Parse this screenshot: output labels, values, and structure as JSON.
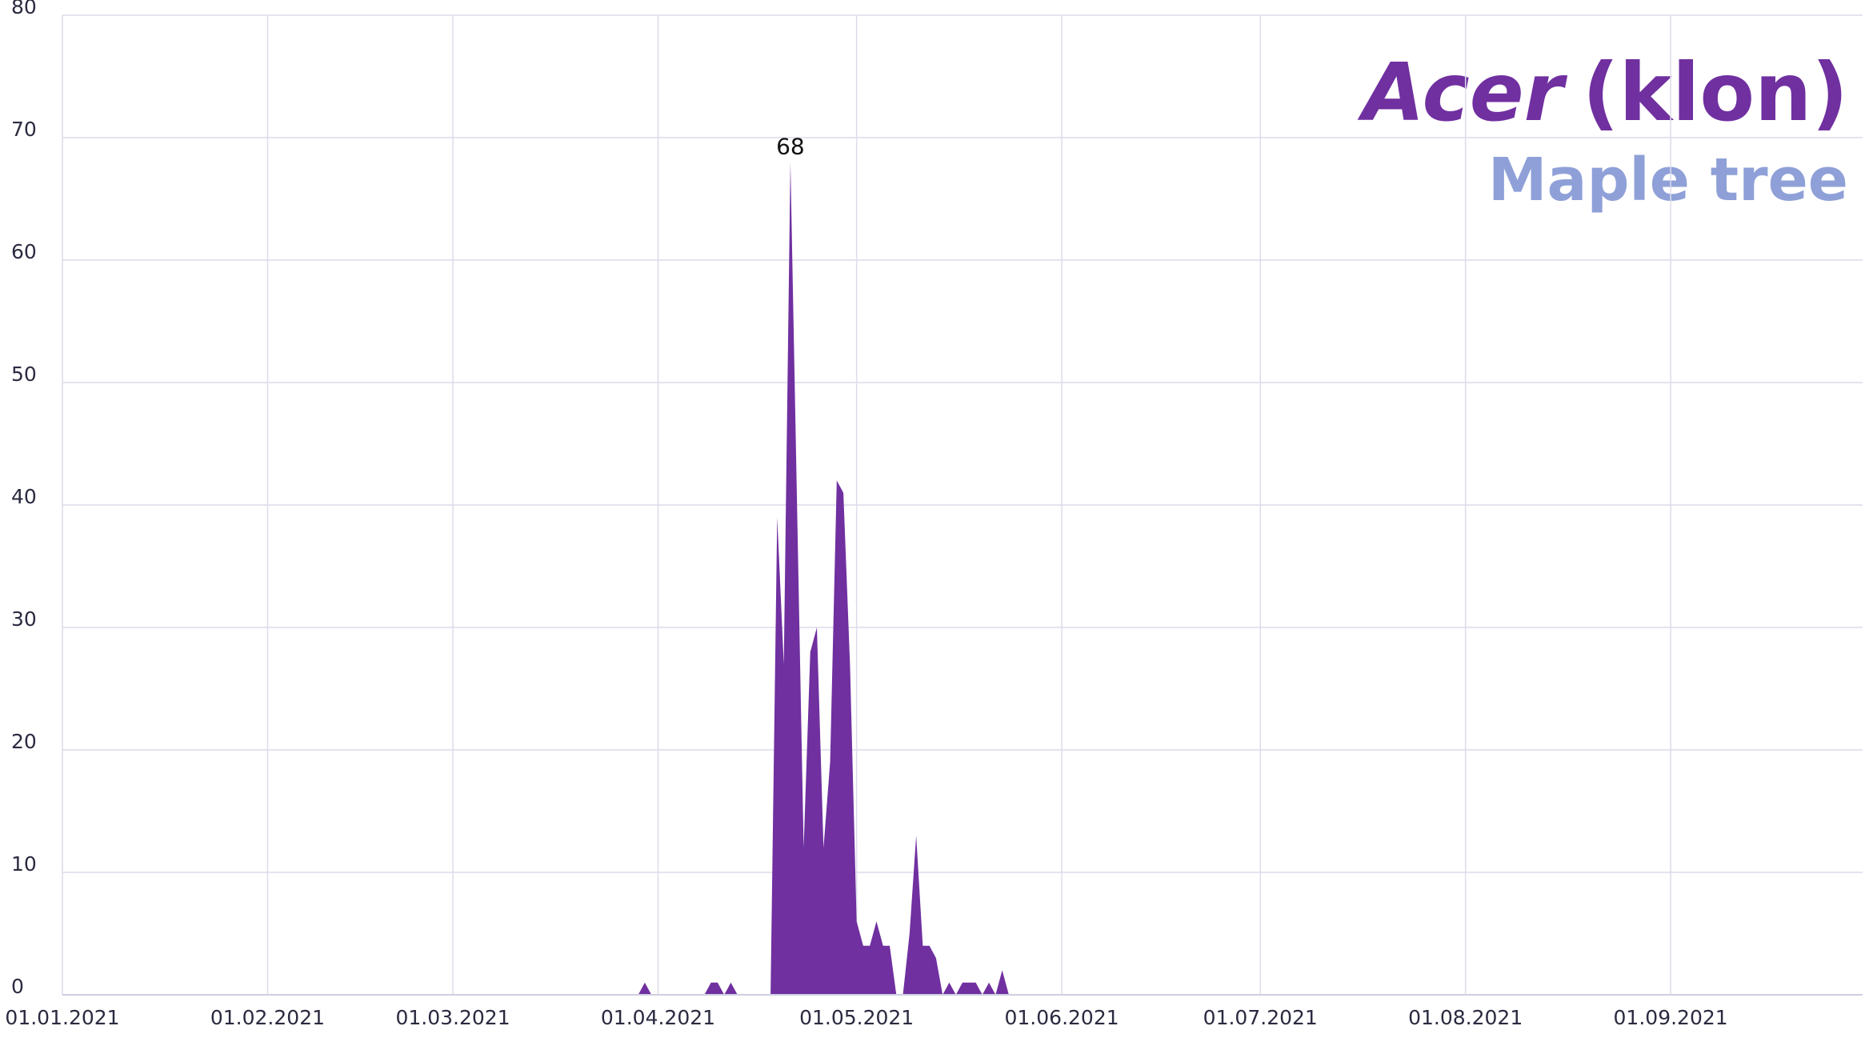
{
  "chart_data": {
    "type": "area",
    "title_italic": "Acer",
    "title_rest": "(klon)",
    "subtitle": "Maple tree",
    "x": [
      "2021-03-29",
      "2021-03-30",
      "2021-03-31",
      "2021-04-01",
      "2021-04-02",
      "2021-04-03",
      "2021-04-04",
      "2021-04-05",
      "2021-04-06",
      "2021-04-07",
      "2021-04-08",
      "2021-04-09",
      "2021-04-10",
      "2021-04-11",
      "2021-04-12",
      "2021-04-13",
      "2021-04-14",
      "2021-04-15",
      "2021-04-16",
      "2021-04-17",
      "2021-04-18",
      "2021-04-19",
      "2021-04-20",
      "2021-04-21",
      "2021-04-22",
      "2021-04-23",
      "2021-04-24",
      "2021-04-25",
      "2021-04-26",
      "2021-04-27",
      "2021-04-28",
      "2021-04-29",
      "2021-04-30",
      "2021-05-01",
      "2021-05-02",
      "2021-05-03",
      "2021-05-04",
      "2021-05-05",
      "2021-05-06",
      "2021-05-07",
      "2021-05-08",
      "2021-05-09",
      "2021-05-10",
      "2021-05-11",
      "2021-05-12",
      "2021-05-13",
      "2021-05-14",
      "2021-05-15",
      "2021-05-16",
      "2021-05-17",
      "2021-05-18",
      "2021-05-19",
      "2021-05-20",
      "2021-05-21",
      "2021-05-22",
      "2021-05-23",
      "2021-05-24"
    ],
    "series": [
      {
        "name": "Acer",
        "color": "#7030a0",
        "values": [
          0,
          1,
          0,
          0,
          0,
          0,
          0,
          0,
          0,
          0,
          0,
          1,
          1,
          0,
          1,
          0,
          0,
          0,
          0,
          0,
          0,
          39,
          27,
          68,
          40,
          12,
          28,
          30,
          12,
          19,
          42,
          41,
          27,
          6,
          4,
          4,
          6,
          4,
          4,
          0,
          0,
          5,
          13,
          4,
          4,
          3,
          0,
          1,
          0,
          1,
          1,
          1,
          0,
          1,
          0,
          2,
          0
        ]
      }
    ],
    "annotations": [
      {
        "text": "68",
        "x": "2021-04-21",
        "y": 68
      }
    ],
    "xlim": [
      "2021-01-01",
      "2021-09-30"
    ],
    "xticks": [
      {
        "value": "2021-01-01",
        "label": "01.01.2021"
      },
      {
        "value": "2021-02-01",
        "label": "01.02.2021"
      },
      {
        "value": "2021-03-01",
        "label": "01.03.2021"
      },
      {
        "value": "2021-04-01",
        "label": "01.04.2021"
      },
      {
        "value": "2021-05-01",
        "label": "01.05.2021"
      },
      {
        "value": "2021-06-01",
        "label": "01.06.2021"
      },
      {
        "value": "2021-07-01",
        "label": "01.07.2021"
      },
      {
        "value": "2021-08-01",
        "label": "01.08.2021"
      },
      {
        "value": "2021-09-01",
        "label": "01.09.2021"
      }
    ],
    "ylim": [
      0,
      80
    ],
    "yticks": [
      0,
      10,
      20,
      30,
      40,
      50,
      60,
      70,
      80
    ],
    "grid": true
  }
}
